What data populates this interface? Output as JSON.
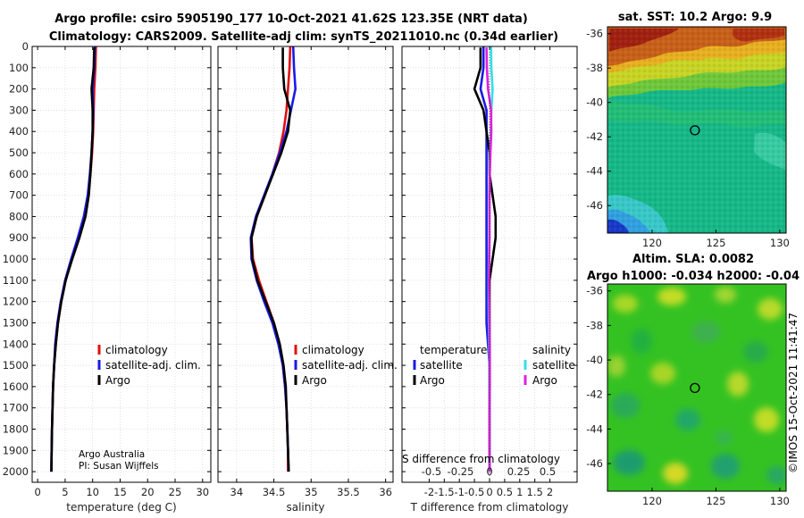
{
  "figure": {
    "title_line1": "Argo profile: csiro 5905190_177 10-Oct-2021 41.62S 123.35E (NRT data)",
    "title_line2": "Climatology: CARS2009. Satellite-adj clim: synTS_20211010.nc (0.34d earlier)",
    "credit_line1": "Argo Australia",
    "credit_line2": "PI: Susan Wijffels",
    "timestamp": "©IMOS 15-Oct-2021 11:41:47"
  },
  "colors": {
    "climatology": "#e01010",
    "satellite_adj": "#1a1ae6",
    "argo": "#000000",
    "satellite": "#30e0e8",
    "argo_salinity": "#e020e0"
  },
  "chart_data": [
    {
      "type": "line",
      "id": "temperature",
      "xlabel": "temperature (deg C)",
      "ylabel": "",
      "xlim": [
        -1,
        31.5
      ],
      "ylim": [
        0,
        2050
      ],
      "y_reversed": true,
      "xticks": [
        0,
        5,
        10,
        15,
        20,
        25,
        30
      ],
      "yticks": [
        0,
        100,
        200,
        300,
        400,
        500,
        600,
        700,
        800,
        900,
        1000,
        1100,
        1200,
        1300,
        1400,
        1500,
        1600,
        1700,
        1800,
        1900,
        2000
      ],
      "legend": [
        "climatology",
        "satellite-adj. clim.",
        "Argo"
      ],
      "series": [
        {
          "name": "climatology",
          "color": "#e01010",
          "x": [
            10.6,
            10.5,
            10.3,
            10.2,
            10.1,
            9.9,
            9.6,
            9.2,
            8.5,
            7.4,
            6.2,
            5.1,
            4.3,
            3.7,
            3.3,
            3.0,
            2.8,
            2.7,
            2.6,
            2.55,
            2.5
          ],
          "y": [
            0,
            100,
            200,
            300,
            400,
            500,
            600,
            700,
            800,
            900,
            1000,
            1100,
            1200,
            1300,
            1400,
            1500,
            1600,
            1700,
            1800,
            1900,
            2000
          ]
        },
        {
          "name": "satellite-adj. clim.",
          "color": "#1a1ae6",
          "x": [
            10.4,
            10.3,
            10.0,
            10.1,
            10.0,
            9.8,
            9.5,
            9.1,
            8.4,
            7.3,
            6.1,
            5.0,
            4.2,
            3.6,
            3.2,
            3.0,
            2.8,
            2.7,
            2.6,
            2.55,
            2.5
          ],
          "y": [
            0,
            100,
            200,
            300,
            400,
            500,
            600,
            700,
            800,
            900,
            1000,
            1100,
            1200,
            1300,
            1400,
            1500,
            1600,
            1700,
            1800,
            1900,
            2000
          ]
        },
        {
          "name": "Argo",
          "color": "#000000",
          "x": [
            10.3,
            10.2,
            9.8,
            10.0,
            10.0,
            9.8,
            9.6,
            9.3,
            8.7,
            7.6,
            6.3,
            5.1,
            4.3,
            3.7,
            3.3,
            3.0,
            2.8,
            2.7,
            2.6,
            2.55,
            2.5
          ],
          "y": [
            5,
            100,
            200,
            300,
            400,
            500,
            600,
            700,
            800,
            900,
            1000,
            1100,
            1200,
            1300,
            1400,
            1500,
            1600,
            1700,
            1800,
            1900,
            2000
          ]
        }
      ]
    },
    {
      "type": "line",
      "id": "salinity",
      "xlabel": "salinity",
      "xlim": [
        33.75,
        36.1
      ],
      "ylim": [
        0,
        2050
      ],
      "y_reversed": true,
      "xticks": [
        34,
        34.5,
        35,
        35.5,
        36
      ],
      "legend": [
        "climatology",
        "satellite-adj. clim.",
        "Argo"
      ],
      "series": [
        {
          "name": "climatology",
          "color": "#e01010",
          "x": [
            34.72,
            34.71,
            34.69,
            34.67,
            34.63,
            34.57,
            34.48,
            34.38,
            34.27,
            34.2,
            34.22,
            34.3,
            34.4,
            34.5,
            34.57,
            34.62,
            34.65,
            34.67,
            34.68,
            34.69,
            34.69
          ],
          "y": [
            0,
            100,
            200,
            300,
            400,
            500,
            600,
            700,
            800,
            900,
            1000,
            1100,
            1200,
            1300,
            1400,
            1500,
            1600,
            1700,
            1800,
            1900,
            2000
          ]
        },
        {
          "name": "satellite-adj. clim.",
          "color": "#1a1ae6",
          "x": [
            34.76,
            34.77,
            34.79,
            34.73,
            34.67,
            34.58,
            34.48,
            34.37,
            34.26,
            34.19,
            34.2,
            34.27,
            34.37,
            34.48,
            34.56,
            34.62,
            34.65,
            34.67,
            34.68,
            34.69,
            34.7
          ],
          "y": [
            0,
            100,
            200,
            300,
            400,
            500,
            600,
            700,
            800,
            900,
            1000,
            1100,
            1200,
            1300,
            1400,
            1500,
            1600,
            1700,
            1800,
            1900,
            2000
          ]
        },
        {
          "name": "Argo",
          "color": "#000000",
          "x": [
            34.62,
            34.62,
            34.64,
            34.72,
            34.69,
            34.6,
            34.49,
            34.38,
            34.27,
            34.2,
            34.21,
            34.28,
            34.39,
            34.5,
            34.58,
            34.63,
            34.66,
            34.67,
            34.68,
            34.69,
            34.7
          ],
          "y": [
            5,
            100,
            200,
            300,
            400,
            500,
            600,
            700,
            800,
            900,
            1000,
            1100,
            1200,
            1300,
            1400,
            1500,
            1600,
            1700,
            1800,
            1900,
            2000
          ]
        }
      ]
    },
    {
      "type": "line",
      "id": "differences",
      "xlabel": "T difference from climatology",
      "xlabel_top": "S difference from climatology",
      "xlim": [
        -2.9,
        2.9
      ],
      "ylim": [
        0,
        2050
      ],
      "y_reversed": true,
      "xticks": [
        -2,
        -1.5,
        -1,
        -0.5,
        0,
        0.5,
        1,
        1.5,
        2
      ],
      "xticklabels": [
        "-2",
        "-1.5",
        "-1",
        "-0.5",
        "0",
        "0.5",
        "1",
        "1.5",
        "2"
      ],
      "xticks_top": [
        -0.5,
        -0.25,
        0,
        0.25,
        0.5
      ],
      "xticklabels_top": [
        "-0.5",
        "-0.25",
        "0",
        "0.25",
        "0.5"
      ],
      "legend_left_title": "temperature",
      "legend_right_title": "salinity",
      "legend": [
        "satellite",
        "Argo",
        "satellite",
        "Argo"
      ],
      "series": [
        {
          "name": "satellite (temperature)",
          "color": "#1a1ae6",
          "x": [
            -0.2,
            -0.2,
            -0.3,
            -0.1,
            -0.1,
            -0.1,
            -0.1,
            -0.1,
            -0.1,
            -0.1,
            -0.1,
            -0.1,
            -0.1,
            -0.1,
            -0.05,
            0,
            0,
            0,
            0,
            0,
            0
          ],
          "y": [
            0,
            100,
            200,
            300,
            400,
            500,
            600,
            700,
            800,
            900,
            1000,
            1100,
            1200,
            1300,
            1400,
            1500,
            1600,
            1700,
            1800,
            1900,
            2000
          ]
        },
        {
          "name": "Argo (temperature)",
          "color": "#000000",
          "x": [
            -0.3,
            -0.3,
            -0.5,
            -0.2,
            -0.1,
            0,
            0,
            0.1,
            0.2,
            0.2,
            0.1,
            0,
            0,
            0,
            0,
            0,
            0,
            0,
            0,
            0,
            0
          ],
          "y": [
            5,
            100,
            200,
            300,
            400,
            500,
            600,
            700,
            800,
            900,
            1000,
            1100,
            1200,
            1300,
            1400,
            1500,
            1600,
            1700,
            1800,
            1900,
            2000
          ]
        },
        {
          "name": "satellite (salinity)",
          "color": "#30e0e8",
          "x": [
            0.05,
            0.06,
            0.1,
            0.06,
            0.04,
            0.02,
            0.0,
            -0.01,
            -0.01,
            -0.01,
            -0.02,
            -0.03,
            -0.03,
            -0.02,
            -0.01,
            0,
            0,
            0,
            0,
            0,
            0
          ],
          "y": [
            0,
            100,
            200,
            300,
            400,
            500,
            600,
            700,
            800,
            900,
            1000,
            1100,
            1200,
            1300,
            1400,
            1500,
            1600,
            1700,
            1800,
            1900,
            2000
          ]
        },
        {
          "name": "Argo (salinity)",
          "color": "#e020e0",
          "x": [
            -0.1,
            -0.09,
            -0.05,
            0.05,
            0.06,
            0.03,
            0.01,
            0.0,
            0.0,
            0.0,
            -0.01,
            -0.02,
            -0.01,
            0.0,
            0.01,
            0.01,
            0.01,
            0.0,
            0.0,
            0.0,
            0.01
          ],
          "y": [
            5,
            100,
            200,
            300,
            400,
            500,
            600,
            700,
            800,
            900,
            1000,
            1100,
            1200,
            1300,
            1400,
            1500,
            1600,
            1700,
            1800,
            1900,
            2000
          ]
        }
      ]
    },
    {
      "type": "heatmap",
      "id": "sst_map",
      "title": "sat. SST: 10.2 Argo: 9.9",
      "xlim": [
        116.5,
        130.5
      ],
      "ylim": [
        -47.6,
        -35.6
      ],
      "xticks": [
        120,
        125,
        130
      ],
      "yticks": [
        -36,
        -38,
        -40,
        -42,
        -44,
        -46
      ],
      "marker": {
        "lon": 123.35,
        "lat": -41.62
      }
    },
    {
      "type": "heatmap",
      "id": "sla_map",
      "title_line1": "Altim. SLA: 0.0082",
      "title_line2": "Argo h1000: -0.034 h2000: -0.04",
      "xlim": [
        116.5,
        130.5
      ],
      "ylim": [
        -47.6,
        -35.6
      ],
      "xticks": [
        120,
        125,
        130
      ],
      "yticks": [
        -36,
        -38,
        -40,
        -42,
        -44,
        -46
      ],
      "marker": {
        "lon": 123.35,
        "lat": -41.62
      }
    }
  ]
}
